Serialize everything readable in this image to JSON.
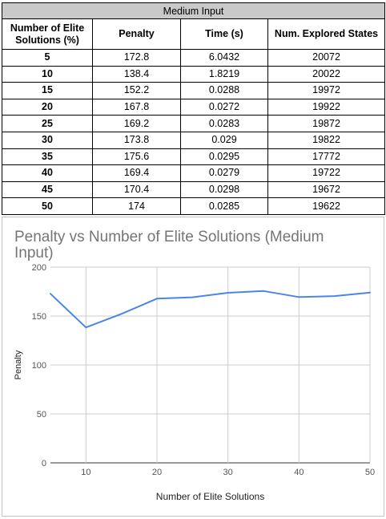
{
  "table": {
    "caption": "Medium Input",
    "headers": [
      "Number of Elite Solutions (%)",
      "Penalty",
      "Time (s)",
      "Num. Explored States"
    ],
    "rows": [
      [
        "5",
        "172.8",
        "6.0432",
        "20072"
      ],
      [
        "10",
        "138.4",
        "1.8219",
        "20022"
      ],
      [
        "15",
        "152.2",
        "0.0288",
        "19972"
      ],
      [
        "20",
        "167.8",
        "0.0272",
        "19922"
      ],
      [
        "25",
        "169.2",
        "0.0283",
        "19872"
      ],
      [
        "30",
        "173.8",
        "0.029",
        "19822"
      ],
      [
        "35",
        "175.6",
        "0.0295",
        "17772"
      ],
      [
        "40",
        "169.4",
        "0.0279",
        "19722"
      ],
      [
        "45",
        "170.4",
        "0.0298",
        "19672"
      ],
      [
        "50",
        "174",
        "0.0285",
        "19622"
      ]
    ]
  },
  "chart_data": {
    "type": "line",
    "title": "Penalty vs Number of Elite Solutions (Medium Input)",
    "xlabel": "Number of Elite Solutions",
    "ylabel": "Penalty",
    "x": [
      5,
      10,
      15,
      20,
      25,
      30,
      35,
      40,
      45,
      50
    ],
    "series": [
      {
        "values": [
          172.8,
          138.4,
          152.2,
          167.8,
          169.2,
          173.8,
          175.6,
          169.4,
          170.4,
          174
        ]
      }
    ],
    "xlim": [
      5,
      50
    ],
    "ylim": [
      0,
      200
    ],
    "xticks": [
      10,
      20,
      30,
      40,
      50
    ],
    "yticks": [
      0,
      50,
      100,
      150,
      200
    ],
    "grid": true,
    "line_color": "#4a86e8"
  }
}
